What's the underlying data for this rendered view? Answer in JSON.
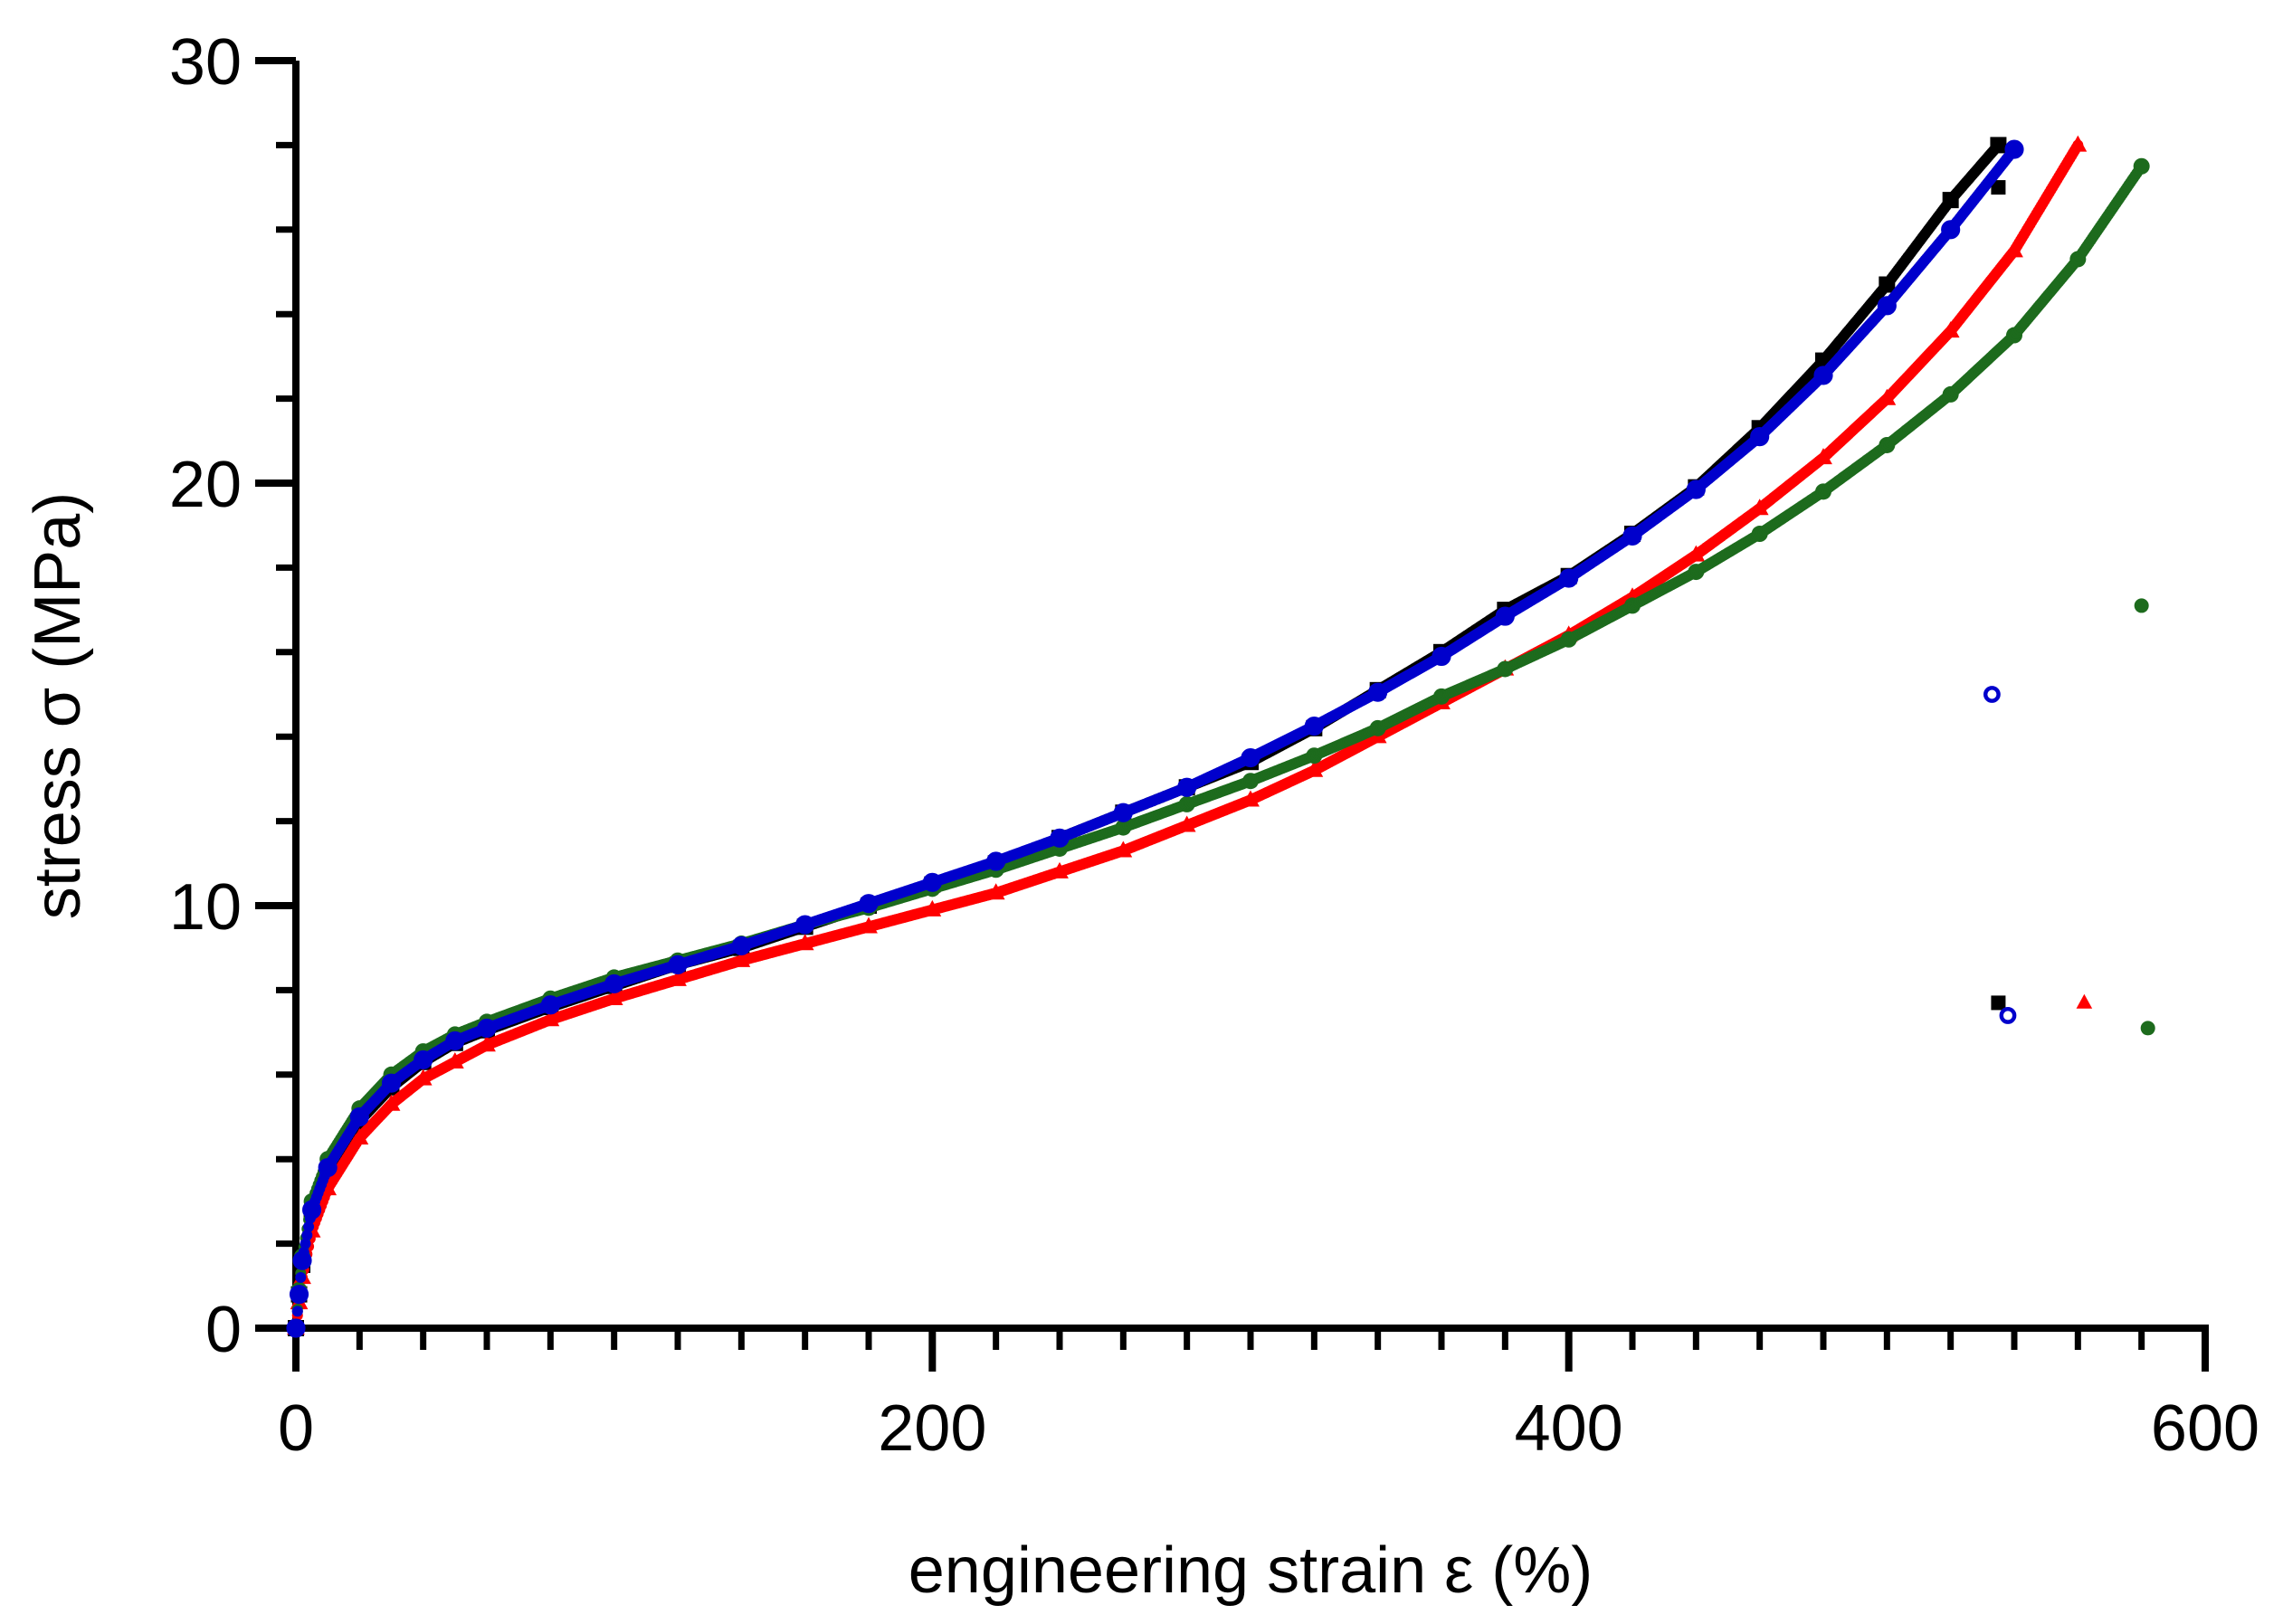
{
  "chart_data": {
    "type": "scatter",
    "title": "",
    "xlabel": "engineering strain ε (%)",
    "ylabel": "stress σ (MPa)",
    "xlim": [
      0,
      600
    ],
    "ylim": [
      0,
      30
    ],
    "x_ticks": [
      0,
      200,
      400,
      600
    ],
    "y_ticks": [
      0,
      10,
      20,
      30
    ],
    "x_minor_step": 20,
    "y_minor_step": 2,
    "grid": false,
    "legend": "none",
    "series": [
      {
        "name": "black",
        "color": "#000000",
        "marker": "square",
        "x": [
          0,
          1,
          2,
          5,
          10,
          20,
          30,
          40,
          50,
          60,
          80,
          100,
          120,
          140,
          160,
          180,
          200,
          220,
          240,
          260,
          280,
          300,
          320,
          340,
          360,
          380,
          400,
          420,
          440,
          460,
          480,
          500,
          520,
          535
        ],
        "y": [
          0,
          0.8,
          1.5,
          2.7,
          3.7,
          4.9,
          5.7,
          6.3,
          6.75,
          7.05,
          7.6,
          8.1,
          8.6,
          9.0,
          9.5,
          10.0,
          10.5,
          11.0,
          11.6,
          12.2,
          12.8,
          13.4,
          14.2,
          15.1,
          16.0,
          17.0,
          17.8,
          18.8,
          19.9,
          21.3,
          22.9,
          24.7,
          26.7,
          28.0
        ],
        "outliers": [
          {
            "x": 535,
            "y": 7.7
          },
          {
            "x": 535,
            "y": 27.0
          }
        ]
      },
      {
        "name": "red",
        "color": "#ff0000",
        "marker": "triangle",
        "x": [
          0,
          1,
          2,
          5,
          10,
          20,
          30,
          40,
          50,
          60,
          80,
          100,
          120,
          140,
          160,
          180,
          200,
          220,
          240,
          260,
          280,
          300,
          320,
          340,
          360,
          380,
          400,
          420,
          440,
          460,
          480,
          500,
          520,
          540,
          560
        ],
        "y": [
          0,
          0.6,
          1.2,
          2.3,
          3.3,
          4.5,
          5.3,
          5.9,
          6.3,
          6.7,
          7.3,
          7.8,
          8.25,
          8.7,
          9.1,
          9.5,
          9.9,
          10.3,
          10.8,
          11.3,
          11.9,
          12.5,
          13.2,
          14.0,
          14.8,
          15.6,
          16.4,
          17.3,
          18.3,
          19.4,
          20.6,
          22.0,
          23.6,
          25.5,
          28.0
        ],
        "outliers": [
          {
            "x": 562,
            "y": 7.7
          }
        ]
      },
      {
        "name": "green",
        "color": "#1d6b1d",
        "marker": "circle",
        "x": [
          0,
          1,
          2,
          5,
          10,
          20,
          30,
          40,
          50,
          60,
          80,
          100,
          120,
          140,
          160,
          180,
          200,
          220,
          240,
          260,
          280,
          300,
          320,
          340,
          360,
          380,
          400,
          420,
          440,
          460,
          480,
          500,
          520,
          540,
          560,
          580
        ],
        "y": [
          0,
          0.9,
          1.7,
          3.0,
          4.0,
          5.2,
          6.0,
          6.55,
          6.95,
          7.25,
          7.8,
          8.3,
          8.7,
          9.1,
          9.55,
          9.95,
          10.4,
          10.85,
          11.35,
          11.85,
          12.4,
          12.95,
          13.55,
          14.2,
          14.95,
          15.6,
          16.3,
          17.1,
          17.9,
          18.8,
          19.8,
          20.9,
          22.1,
          23.5,
          25.3,
          27.5
        ],
        "outliers": [
          {
            "x": 580,
            "y": 17.1
          },
          {
            "x": 582,
            "y": 7.1
          }
        ]
      },
      {
        "name": "blue",
        "color": "#0000cc",
        "marker": "circle-open",
        "x": [
          0,
          1,
          2,
          5,
          10,
          20,
          30,
          40,
          50,
          60,
          80,
          100,
          120,
          140,
          160,
          180,
          200,
          220,
          240,
          260,
          280,
          300,
          320,
          340,
          360,
          380,
          400,
          420,
          440,
          460,
          480,
          500,
          520,
          540
        ],
        "y": [
          0,
          0.8,
          1.6,
          2.8,
          3.8,
          5.0,
          5.8,
          6.35,
          6.8,
          7.1,
          7.65,
          8.15,
          8.6,
          9.05,
          9.55,
          10.05,
          10.55,
          11.05,
          11.6,
          12.2,
          12.8,
          13.5,
          14.25,
          15.05,
          15.9,
          16.85,
          17.75,
          18.75,
          19.85,
          21.1,
          22.55,
          24.2,
          26.0,
          27.9
        ],
        "outliers": [
          {
            "x": 533,
            "y": 15.0
          },
          {
            "x": 538,
            "y": 7.4
          }
        ]
      }
    ]
  }
}
